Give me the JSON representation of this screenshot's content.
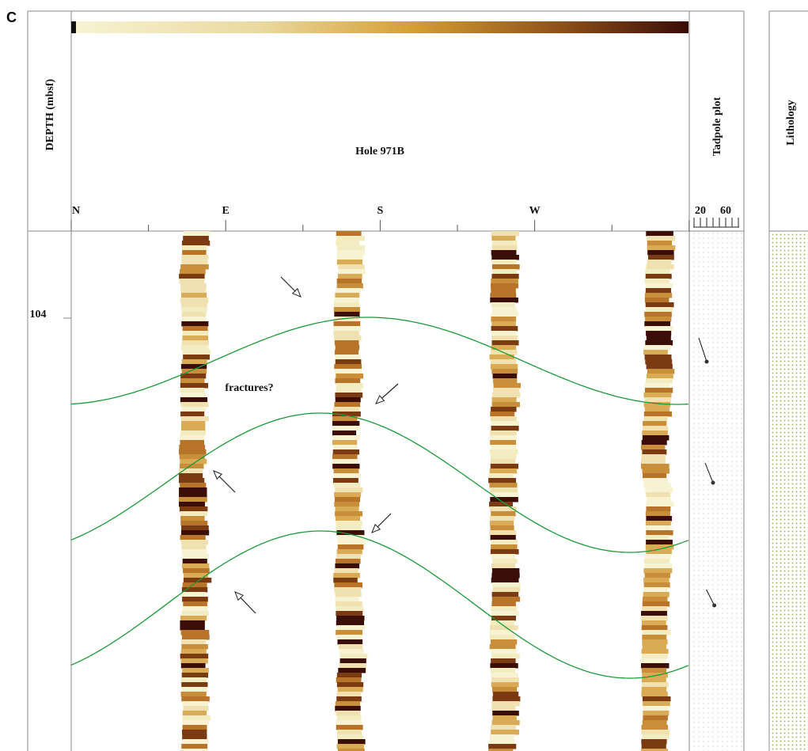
{
  "panel_label": "C",
  "depth_axis": {
    "title": "DEPTH (mbsf)",
    "tick_label": "104"
  },
  "image_panel": {
    "title": "Hole 971B",
    "azimuth_labels": [
      "N",
      "E",
      "S",
      "W"
    ],
    "annotation": "fractures?"
  },
  "tadpole_plot": {
    "title": "Tadpole plot",
    "xlim": [
      10,
      80
    ],
    "xticks": [
      20,
      60
    ],
    "dips": [
      30,
      40,
      42
    ]
  },
  "lithology": {
    "title": "Lithology"
  }
}
